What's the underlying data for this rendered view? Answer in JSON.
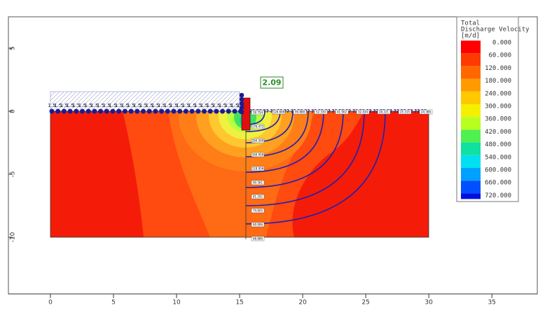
{
  "chart_data": {
    "type": "contour",
    "xlim": [
      -3.33,
      37.1
    ],
    "ylim": [
      -14.5,
      7.5
    ],
    "xticks": [
      0,
      5,
      10,
      15,
      20,
      25,
      30,
      35
    ],
    "yticks": [
      5,
      0,
      -5,
      -10
    ],
    "annotation": "2.09",
    "head_label": "1.5",
    "flow_label": "??",
    "wall_labels": [
      "28.754",
      "176.472",
      "284.500",
      "160.956",
      "118.956",
      "90.361",
      "81.292",
      "74.605",
      "69.896",
      "68.886"
    ],
    "surface_labels": [
      "177.600",
      "126.689",
      "99.888",
      "52.330",
      "41.902",
      "32.434",
      "28.221",
      "25.315",
      "24.386"
    ],
    "legend": {
      "title": [
        "Total",
        "Discharge Velocity",
        "[m/d]"
      ],
      "levels": [
        {
          "value": 0,
          "label": "0.000"
        },
        {
          "value": 60,
          "label": "60.000"
        },
        {
          "value": 120,
          "label": "120.000"
        },
        {
          "value": 180,
          "label": "180.000"
        },
        {
          "value": 240,
          "label": "240.000"
        },
        {
          "value": 300,
          "label": "300.000"
        },
        {
          "value": 360,
          "label": "360.000"
        },
        {
          "value": 420,
          "label": "420.000"
        },
        {
          "value": 480,
          "label": "480.000"
        },
        {
          "value": 540,
          "label": "540.000"
        },
        {
          "value": 600,
          "label": "600.000"
        },
        {
          "value": 660,
          "label": "660.000"
        },
        {
          "value": 720,
          "label": "720.000"
        }
      ],
      "colors": [
        "#ff0000",
        "#ff3a00",
        "#ff6800",
        "#ff9a00",
        "#ffc800",
        "#f4f000",
        "#b8ff20",
        "#50f050",
        "#10e0a0",
        "#00e0f0",
        "#00a0ff",
        "#0050ff",
        "#0010e0"
      ]
    }
  }
}
